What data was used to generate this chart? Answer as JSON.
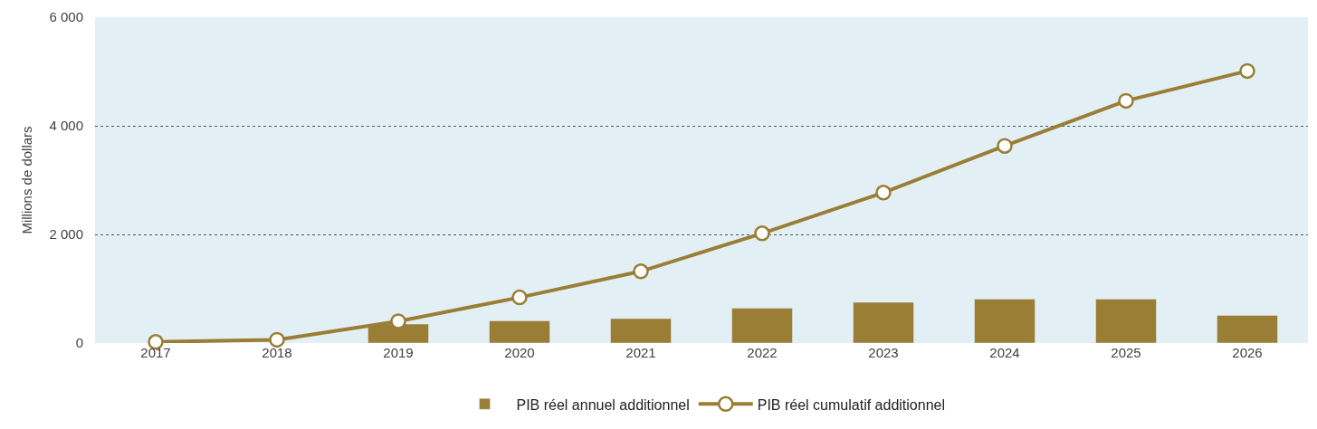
{
  "chart_data": {
    "type": "bar",
    "ylabel": "Millions de dollars",
    "categories": [
      "2017",
      "2018",
      "2019",
      "2020",
      "2021",
      "2022",
      "2023",
      "2024",
      "2025",
      "2026"
    ],
    "series": [
      {
        "name": "PIB réel annuel additionnel",
        "color": "#9a7e35",
        "values": [
          null,
          null,
          350,
          410,
          450,
          640,
          750,
          810,
          810,
          510
        ]
      },
      {
        "name": "PIB réel cumulatif additionnel",
        "type": "line",
        "color": "#9a7e35",
        "marker": "circle",
        "values": [
          20,
          60,
          400,
          840,
          1320,
          2020,
          2770,
          3630,
          4460,
          5010
        ]
      }
    ],
    "ylim": [
      0,
      6000
    ],
    "yticks": [
      {
        "value": 0,
        "label": "0"
      },
      {
        "value": 2000,
        "label": "2 000"
      },
      {
        "value": 4000,
        "label": "4 000"
      },
      {
        "value": 6000,
        "label": "6 000"
      }
    ],
    "grid": "y",
    "legend": "bottom"
  }
}
